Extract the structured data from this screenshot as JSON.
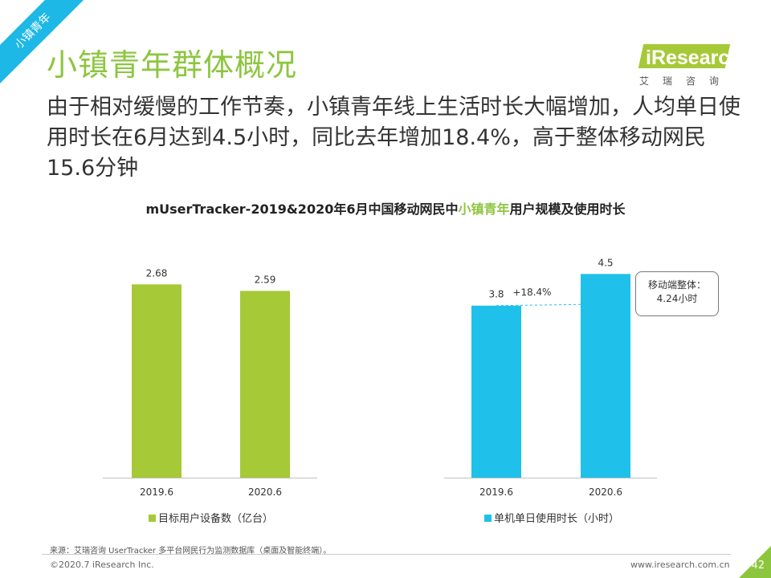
{
  "ribbon": "小镇青年",
  "title": "小镇青年群体概况",
  "logo": {
    "brand": "iResearch",
    "sub": "艾瑞咨询"
  },
  "subtitle": "由于相对缓慢的工作节奏，小镇青年线上生活时长大幅增加，人均单日使用时长在6月达到4.5小时，同比去年增加18.4%，高于整体移动网民15.6分钟",
  "chart_title": {
    "prefix": "mUserTracker-2019&2020年6月中国移动网民中",
    "highlight": "小镇青年",
    "suffix": "用户规模及使用时长"
  },
  "chart_data": [
    {
      "type": "bar",
      "categories": [
        "2019.6",
        "2020.6"
      ],
      "series": [
        {
          "name": "目标用户设备数（亿台）",
          "values": [
            2.68,
            2.59
          ]
        }
      ],
      "value_labels": [
        "2.68",
        "2.59"
      ],
      "ylim": [
        0,
        2.95
      ],
      "color": "#a6c937",
      "legend": "bottom"
    },
    {
      "type": "bar",
      "categories": [
        "2019.6",
        "2020.6"
      ],
      "series": [
        {
          "name": "单机单日使用时长（小时）",
          "values": [
            3.8,
            4.5
          ]
        }
      ],
      "value_labels": [
        "3.8",
        "4.5"
      ],
      "ylim": [
        0,
        4.7
      ],
      "color": "#1fc0ea",
      "legend": "bottom",
      "annotations": {
        "growth": "+18.4%",
        "callout": [
          "移动端整体：",
          "4.24小时"
        ]
      }
    }
  ],
  "source": "来源：艾瑞咨询 UserTracker 多平台网民行为监测数据库（桌面及智能终端）。",
  "copyright": "©2020.7 iResearch Inc.",
  "website": "www.iresearch.com.cn",
  "page_number": "42",
  "colors": {
    "green": "#8cc63f",
    "blue": "#1db8e6"
  }
}
